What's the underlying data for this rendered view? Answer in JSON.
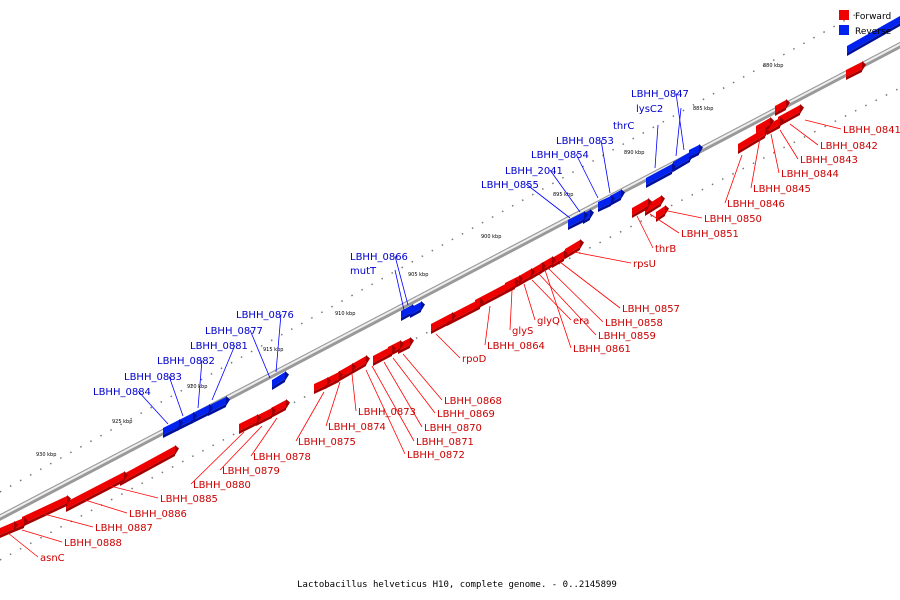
{
  "legend": {
    "items": [
      {
        "label": "Forward",
        "color": "#ee0000"
      },
      {
        "label": "Reverse",
        "color": "#0022ee"
      }
    ]
  },
  "caption": "Lactobacillus helveticus H10, complete genome. - 0..2145899",
  "colors": {
    "forward": "#ee0000",
    "forward_dark": "#a50000",
    "reverse": "#0022ee",
    "reverse_dark": "#00109a",
    "backbone": "#aaaaaa",
    "forward_label": "#cc0000",
    "reverse_label": "#0000cc"
  },
  "ticks": [
    {
      "label": "880 kbp"
    },
    {
      "label": "885 kbp"
    },
    {
      "label": "890 kbp"
    },
    {
      "label": "895 kbp"
    },
    {
      "label": "900 kbp"
    },
    {
      "label": "905 kbp"
    },
    {
      "label": "910 kbp"
    },
    {
      "label": "915 kbp"
    },
    {
      "label": "920 kbp"
    },
    {
      "label": "925 kbp"
    },
    {
      "label": "930 kbp"
    }
  ],
  "reverse_labels": [
    "LBHH_0847",
    "lysC2",
    "thrC",
    "LBHH_0853",
    "LBHH_0854",
    "LBHH_2041",
    "LBHH_0855",
    "LBHH_0866",
    "mutT",
    "LBHH_0876",
    "LBHH_0877",
    "LBHH_0881",
    "LBHH_0882",
    "LBHH_0883",
    "LBHH_0884"
  ],
  "forward_labels": [
    "LBHH_0841",
    "LBHH_0842",
    "LBHH_0843",
    "LBHH_0844",
    "LBHH_0845",
    "LBHH_0846",
    "LBHH_0850",
    "LBHH_0851",
    "thrB",
    "rpsU",
    "LBHH_0857",
    "LBHH_0858",
    "LBHH_0859",
    "era",
    "LBHH_0861",
    "glyQ",
    "glyS",
    "LBHH_0864",
    "rpoD",
    "LBHH_0868",
    "LBHH_0869",
    "LBHH_0870",
    "LBHH_0871",
    "LBHH_0872",
    "LBHH_0873",
    "LBHH_0874",
    "LBHH_0875",
    "LBHH_0878",
    "LBHH_0879",
    "LBHH_0880",
    "LBHH_0885",
    "LBHH_0886",
    "LBHH_0887",
    "LBHH_0888",
    "asnC"
  ]
}
